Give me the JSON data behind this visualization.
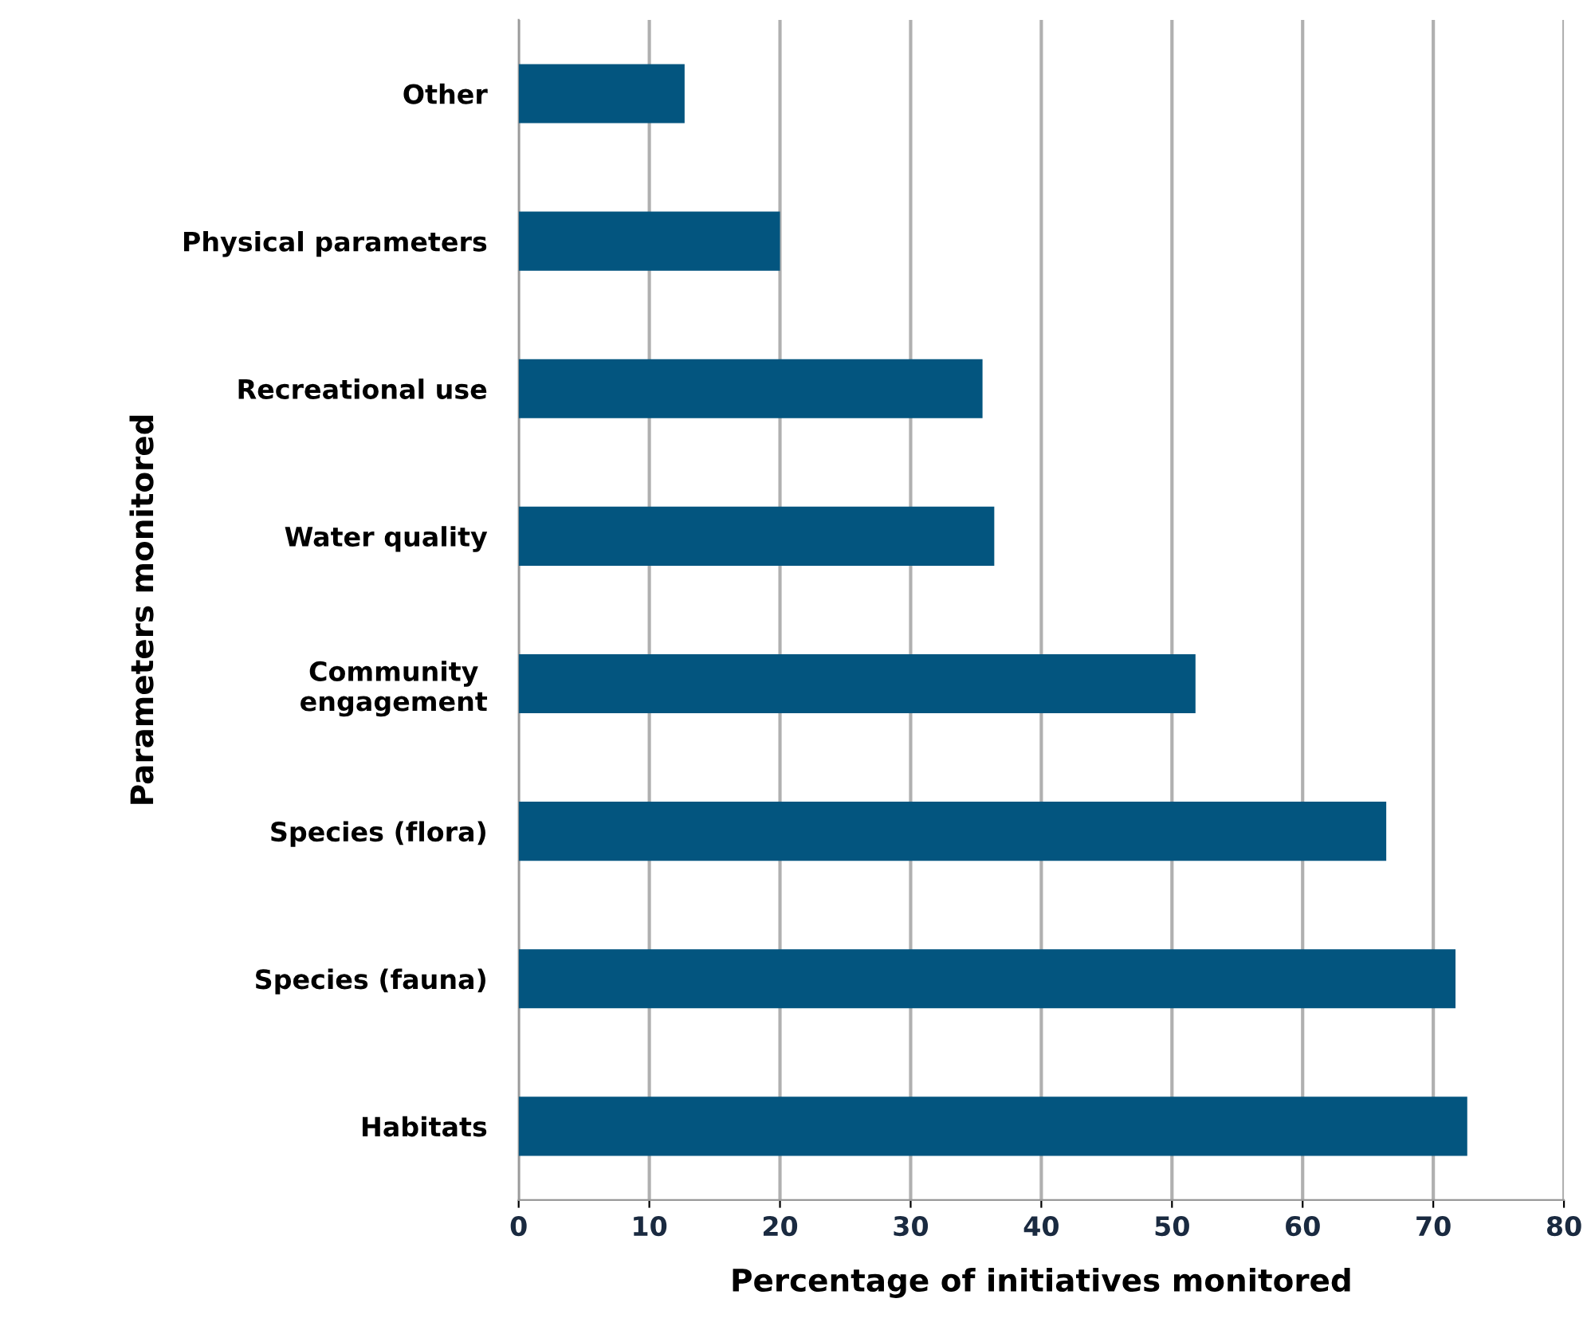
{
  "chart_data": {
    "type": "bar",
    "orientation": "horizontal",
    "xlabel": "Percentage of initiatives monitored",
    "ylabel": "Parameters monitored",
    "categories": [
      "Other",
      "Physical parameters",
      "Recreational use",
      "Water quality",
      "Community\nengagement",
      "Species (flora)",
      "Species (fauna)",
      "Habitats"
    ],
    "values": [
      12.7,
      20.0,
      35.5,
      36.4,
      51.8,
      66.4,
      71.7,
      72.6
    ],
    "color": "#03557f",
    "xlim": [
      0,
      80
    ],
    "xticks": [
      0,
      10,
      20,
      30,
      40,
      50,
      60,
      70,
      80
    ],
    "grid": "x"
  }
}
